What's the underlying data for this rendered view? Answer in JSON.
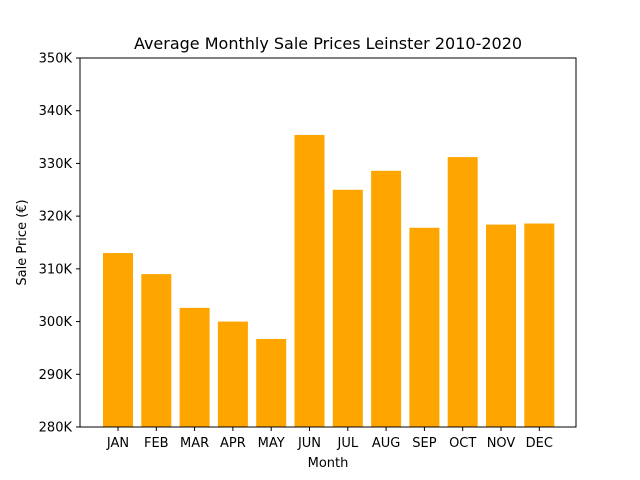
{
  "chart_data": {
    "type": "bar",
    "title": "Average Monthly Sale Prices Leinster 2010-2020",
    "xlabel": "Month",
    "ylabel": "Sale Price (€)",
    "categories": [
      "JAN",
      "FEB",
      "MAR",
      "APR",
      "MAY",
      "JUN",
      "JUL",
      "AUG",
      "SEP",
      "OCT",
      "NOV",
      "DEC"
    ],
    "values": [
      313000,
      309000,
      302600,
      300000,
      296700,
      335400,
      325000,
      328600,
      317800,
      331200,
      318400,
      318600
    ],
    "ylim": [
      280000,
      350000
    ],
    "yticks": [
      280000,
      290000,
      300000,
      310000,
      320000,
      330000,
      340000,
      350000
    ],
    "ytick_labels": [
      "280K",
      "290K",
      "300K",
      "310K",
      "320K",
      "330K",
      "340K",
      "350K"
    ],
    "bar_color": "#FFA500",
    "grid": false,
    "legend": "none"
  }
}
